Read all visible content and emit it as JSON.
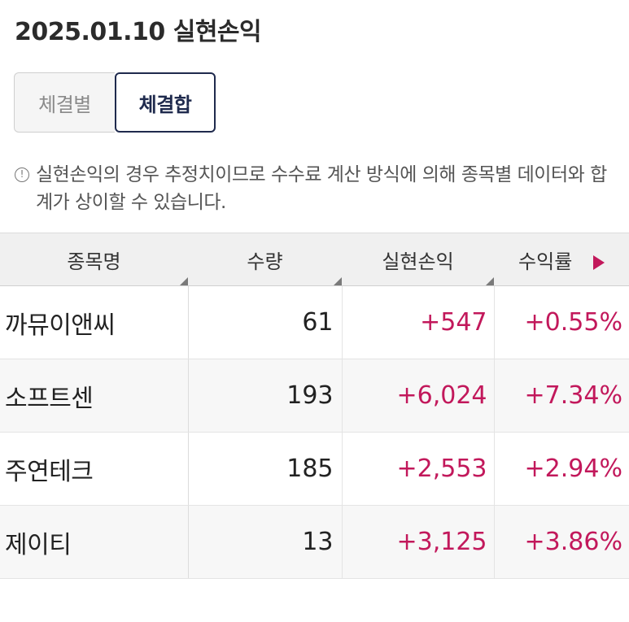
{
  "header": {
    "title": "2025.01.10 실현손익"
  },
  "tabs": [
    {
      "label": "체결별",
      "active": false
    },
    {
      "label": "체결합",
      "active": true
    }
  ],
  "notice": {
    "icon": "info-circle-icon",
    "text": "실현손익의 경우 추정치이므로 수수료 계산 방식에 의해 종목별 데이터와 합계가 상이할 수 있습니다."
  },
  "table": {
    "headers": {
      "name": "종목명",
      "qty": "수량",
      "pnl": "실현손익",
      "rate": "수익률"
    },
    "rows": [
      {
        "name": "까뮤이앤씨",
        "qty": "61",
        "pnl": "+547",
        "rate": "+0.55%"
      },
      {
        "name": "소프트센",
        "qty": "193",
        "pnl": "+6,024",
        "rate": "+7.34%"
      },
      {
        "name": "주연테크",
        "qty": "185",
        "pnl": "+2,553",
        "rate": "+2.94%"
      },
      {
        "name": "제이티",
        "qty": "13",
        "pnl": "+3,125",
        "rate": "+3.86%"
      }
    ]
  },
  "colors": {
    "positive": "#c2185b",
    "active_tab_border": "#1f2a4d"
  }
}
